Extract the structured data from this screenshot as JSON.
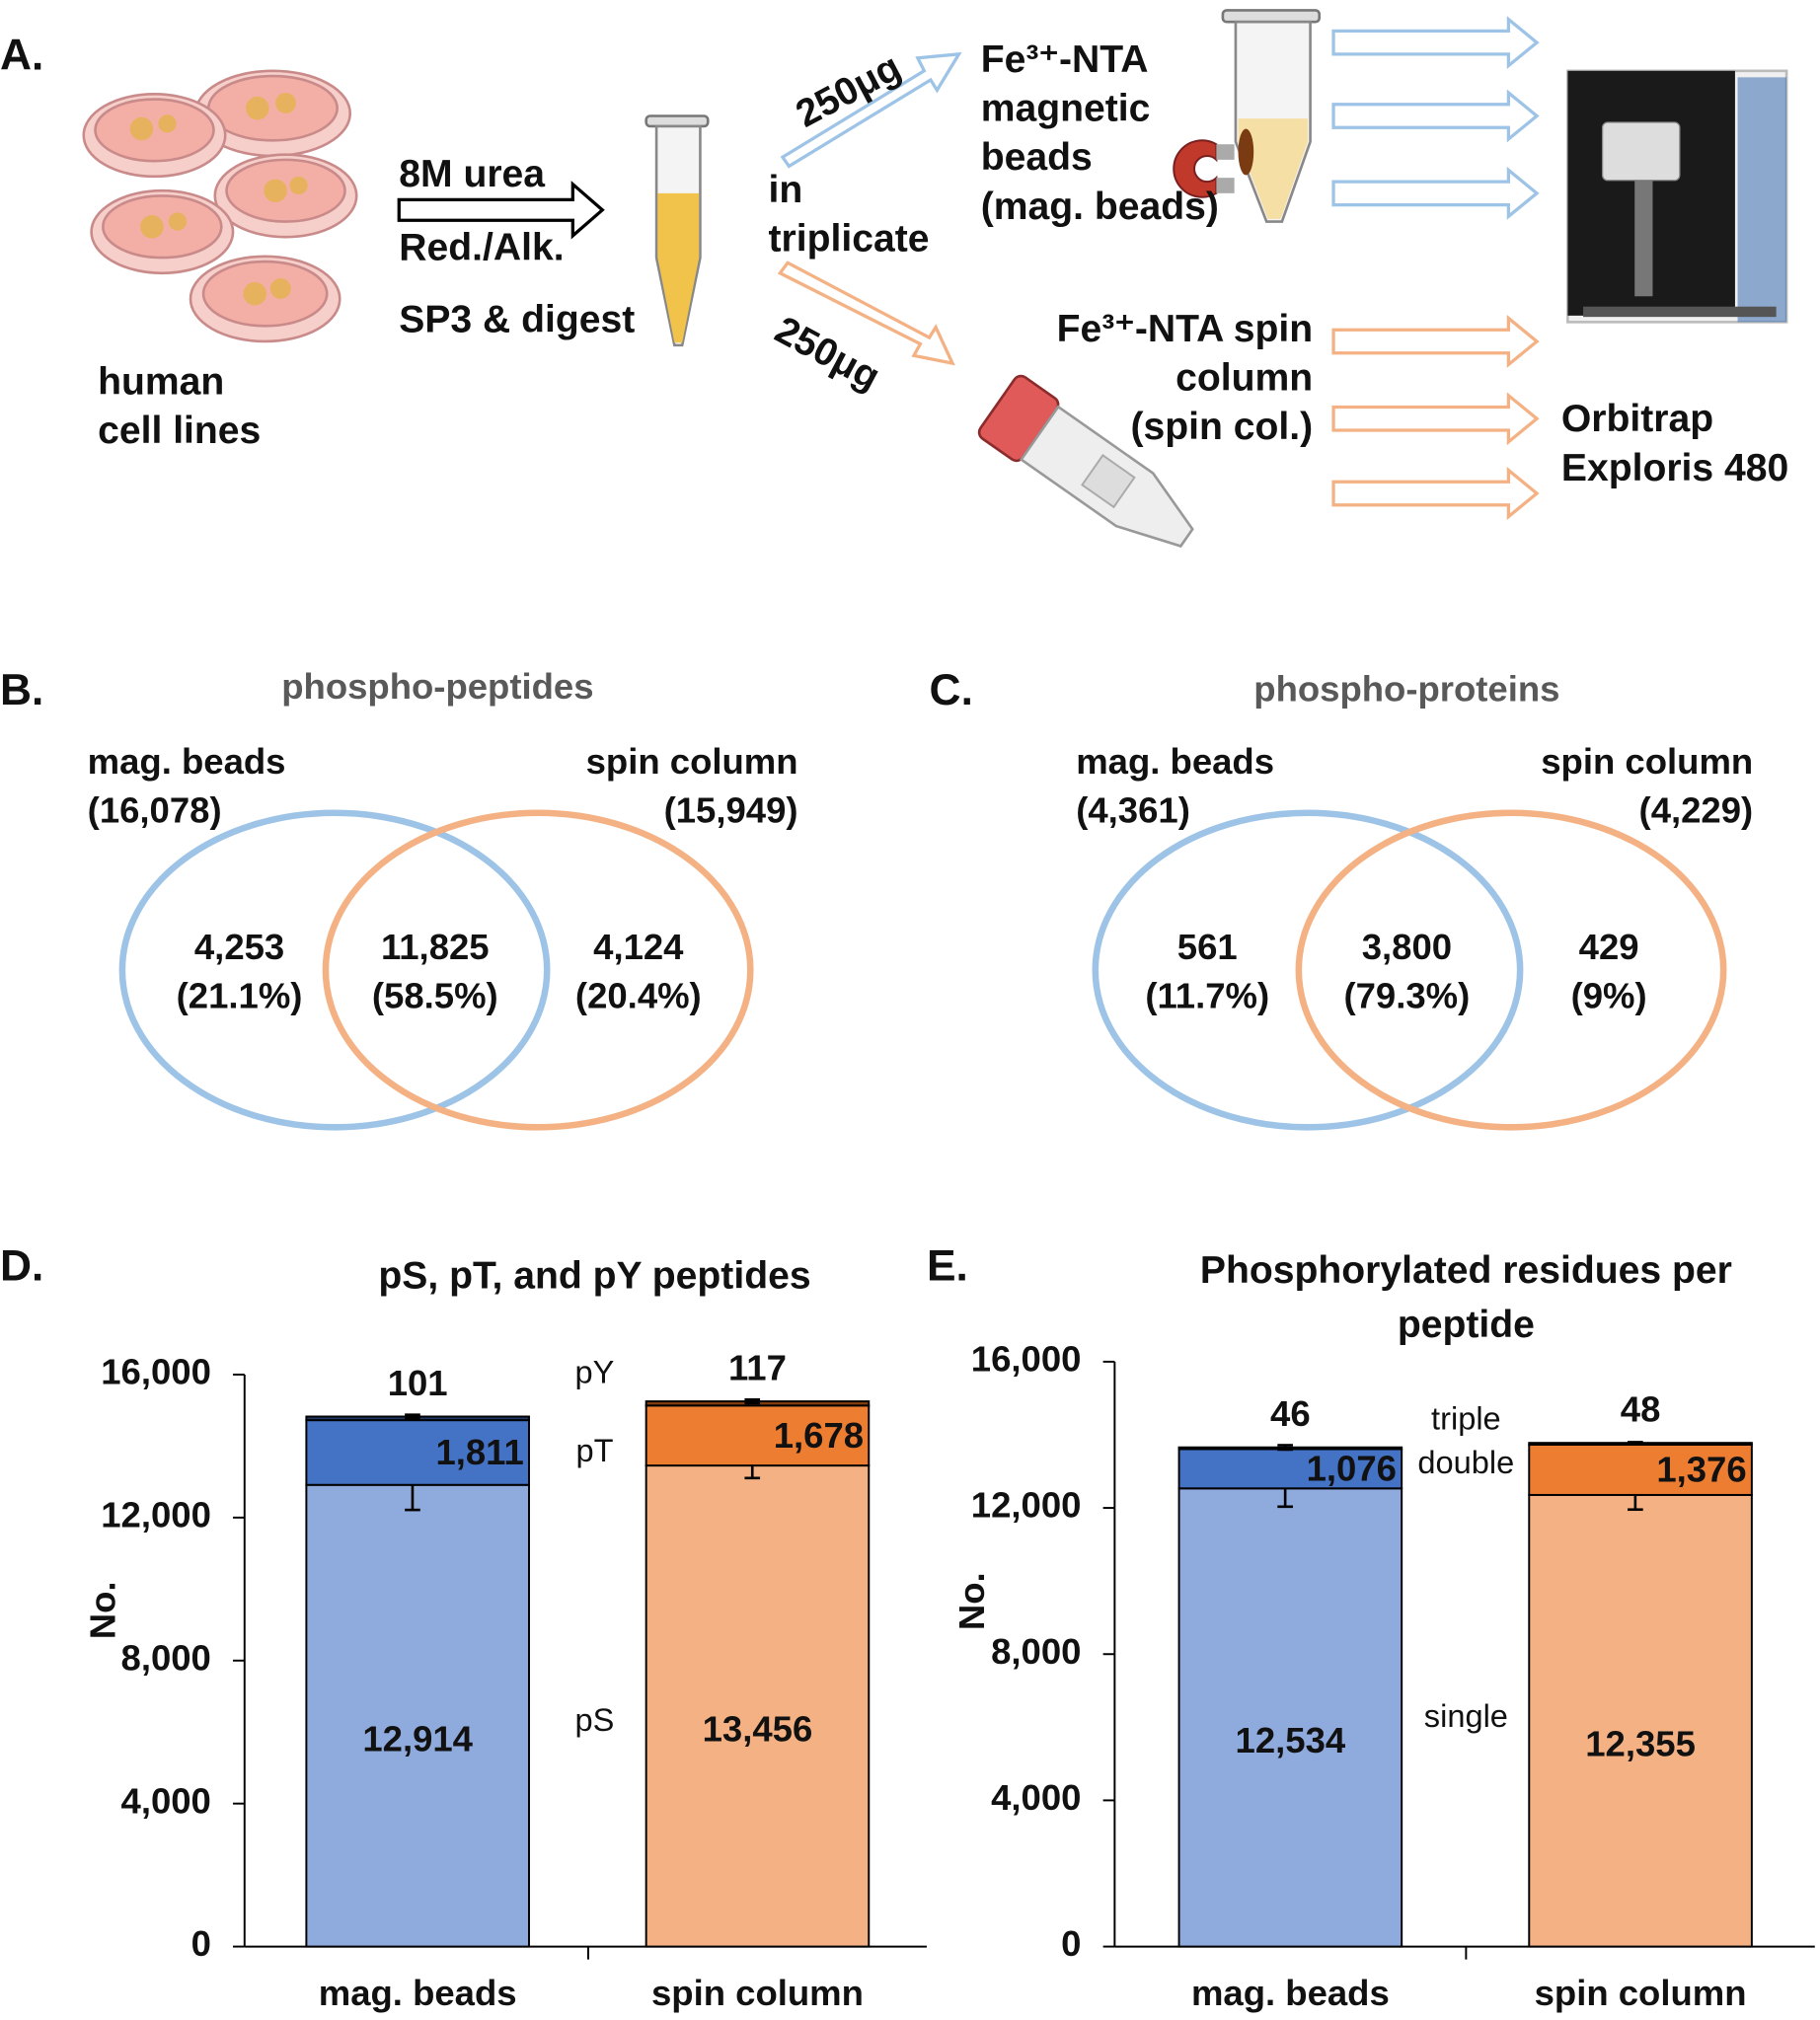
{
  "diagram": {
    "label": "A.",
    "input_label": [
      "human",
      "cell lines"
    ],
    "steps": [
      "8M urea",
      "Red./Alk.",
      "SP3 & digest"
    ],
    "amount_top": "250μg",
    "amount_bottom": "250μg",
    "replicates": [
      "in",
      "triplicate"
    ],
    "method_1": [
      "Fe³⁺-NTA",
      "magnetic",
      "beads",
      "(mag. beads)"
    ],
    "method_2": [
      "Fe³⁺-NTA spin",
      "column",
      "(spin col.)"
    ],
    "instrument": [
      "Orbitrap",
      "Exploris 480"
    ]
  },
  "chart_data": [
    {
      "type": "venn",
      "panel": "B.",
      "title": "phospho-peptides",
      "sets": [
        {
          "name": "mag. beads",
          "total": 16078,
          "total_label": "(16,078)",
          "color": "#9dc3e6"
        },
        {
          "name": "spin column",
          "total": 15949,
          "total_label": "(15,949)",
          "color": "#f4b183"
        }
      ],
      "regions": {
        "values": [
          4253,
          11825,
          4124
        ],
        "value_labels": [
          "4,253",
          "11,825",
          "4,124"
        ],
        "percents": [
          21.1,
          58.5,
          20.4
        ],
        "percent_labels": [
          "(21.1%)",
          "(58.5%)",
          "(20.4%)"
        ]
      }
    },
    {
      "type": "venn",
      "panel": "C.",
      "title": "phospho-proteins",
      "sets": [
        {
          "name": "mag. beads",
          "total": 4361,
          "total_label": "(4,361)",
          "color": "#9dc3e6"
        },
        {
          "name": "spin column",
          "total": 4229,
          "total_label": "(4,229)",
          "color": "#f4b183"
        }
      ],
      "regions": {
        "values": [
          561,
          3800,
          429
        ],
        "value_labels": [
          "561",
          "3,800",
          "429"
        ],
        "percents": [
          11.7,
          79.3,
          9
        ],
        "percent_labels": [
          "(11.7%)",
          "(79.3%)",
          "(9%)"
        ]
      }
    },
    {
      "type": "bar",
      "stacked": true,
      "panel": "D.",
      "title": [
        "pS, pT, and pY peptides"
      ],
      "y_label": "No.",
      "categories": [
        "mag. beads",
        "spin column"
      ],
      "series": [
        {
          "name": "pS",
          "colors": [
            "#8faadc",
            "#f4b183"
          ],
          "values": [
            12914,
            13456
          ],
          "value_labels": [
            "12,914",
            "13,456"
          ],
          "errors": [
            700,
            350
          ]
        },
        {
          "name": "pT",
          "colors": [
            "#4472c4",
            "#ed7d31"
          ],
          "values": [
            1811,
            1678
          ],
          "value_labels": [
            "1,811",
            "1,678"
          ]
        },
        {
          "name": "pY",
          "colors": [
            "#1f3864",
            "#843c0c"
          ],
          "values": [
            101,
            117
          ],
          "errors": [
            50,
            50
          ]
        }
      ],
      "ylim": [
        0,
        16000
      ],
      "yticks": [
        0,
        {
          "value": 4000,
          "label": "4,000"
        },
        {
          "value": 8000,
          "label": "8,000"
        },
        {
          "value": 12000,
          "label": "12,000"
        },
        {
          "value": 16000,
          "label": "16,000"
        }
      ]
    },
    {
      "type": "bar",
      "stacked": true,
      "panel": "E.",
      "title": [
        "Phosphorylated residues per",
        "peptide"
      ],
      "y_label": "No.",
      "categories": [
        "mag. beads",
        "spin column"
      ],
      "series": [
        {
          "name": "single",
          "colors": [
            "#8faadc",
            "#f4b183"
          ],
          "values": [
            12534,
            12355
          ],
          "value_labels": [
            "12,534",
            "12,355"
          ],
          "errors": [
            500,
            400
          ]
        },
        {
          "name": "double",
          "colors": [
            "#4472c4",
            "#ed7d31"
          ],
          "values": [
            1076,
            1376
          ],
          "value_labels": [
            "1,076",
            "1,376"
          ]
        },
        {
          "name": "triple",
          "colors": [
            "#1f3864",
            "#843c0c"
          ],
          "values": [
            46,
            48
          ],
          "errors": [
            60,
            20
          ]
        }
      ],
      "ylim": [
        0,
        16000
      ],
      "yticks": [
        0,
        {
          "value": 4000,
          "label": "4,000"
        },
        {
          "value": 8000,
          "label": "8,000"
        },
        {
          "value": 12000,
          "label": "12,000"
        },
        {
          "value": 16000,
          "label": "16,000"
        }
      ]
    }
  ]
}
